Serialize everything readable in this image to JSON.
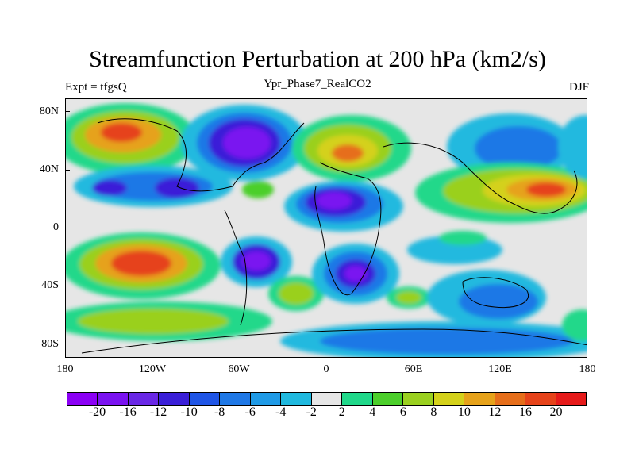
{
  "title": "Streamfunction Perturbation at 200 hPa (km2/s)",
  "subtitle_left": "Expt = tfgsQ",
  "subtitle_center": "Ypr_Phase7_RealCO2",
  "subtitle_right": "DJF",
  "y_axis_labels": [
    "80N",
    "40N",
    "0",
    "40S",
    "80S"
  ],
  "x_axis_labels": [
    "180",
    "120W",
    "60W",
    "0",
    "60E",
    "120E",
    "180"
  ],
  "colorbar": {
    "colors": [
      "#8b00f5",
      "#7a12f0",
      "#6a28e6",
      "#3a1fd8",
      "#1f55e6",
      "#1f78e6",
      "#1f9ae6",
      "#20b9df",
      "#e6e6e6",
      "#20d88a",
      "#4ccf2b",
      "#9ad01f",
      "#d4d11a",
      "#e6a21a",
      "#e66e1a",
      "#e6431a",
      "#e61a1a"
    ],
    "labels": [
      "-20",
      "-16",
      "-12",
      "-10",
      "-8",
      "-6",
      "-4",
      "-2",
      "2",
      "4",
      "6",
      "8",
      "10",
      "12",
      "16",
      "20"
    ]
  }
}
